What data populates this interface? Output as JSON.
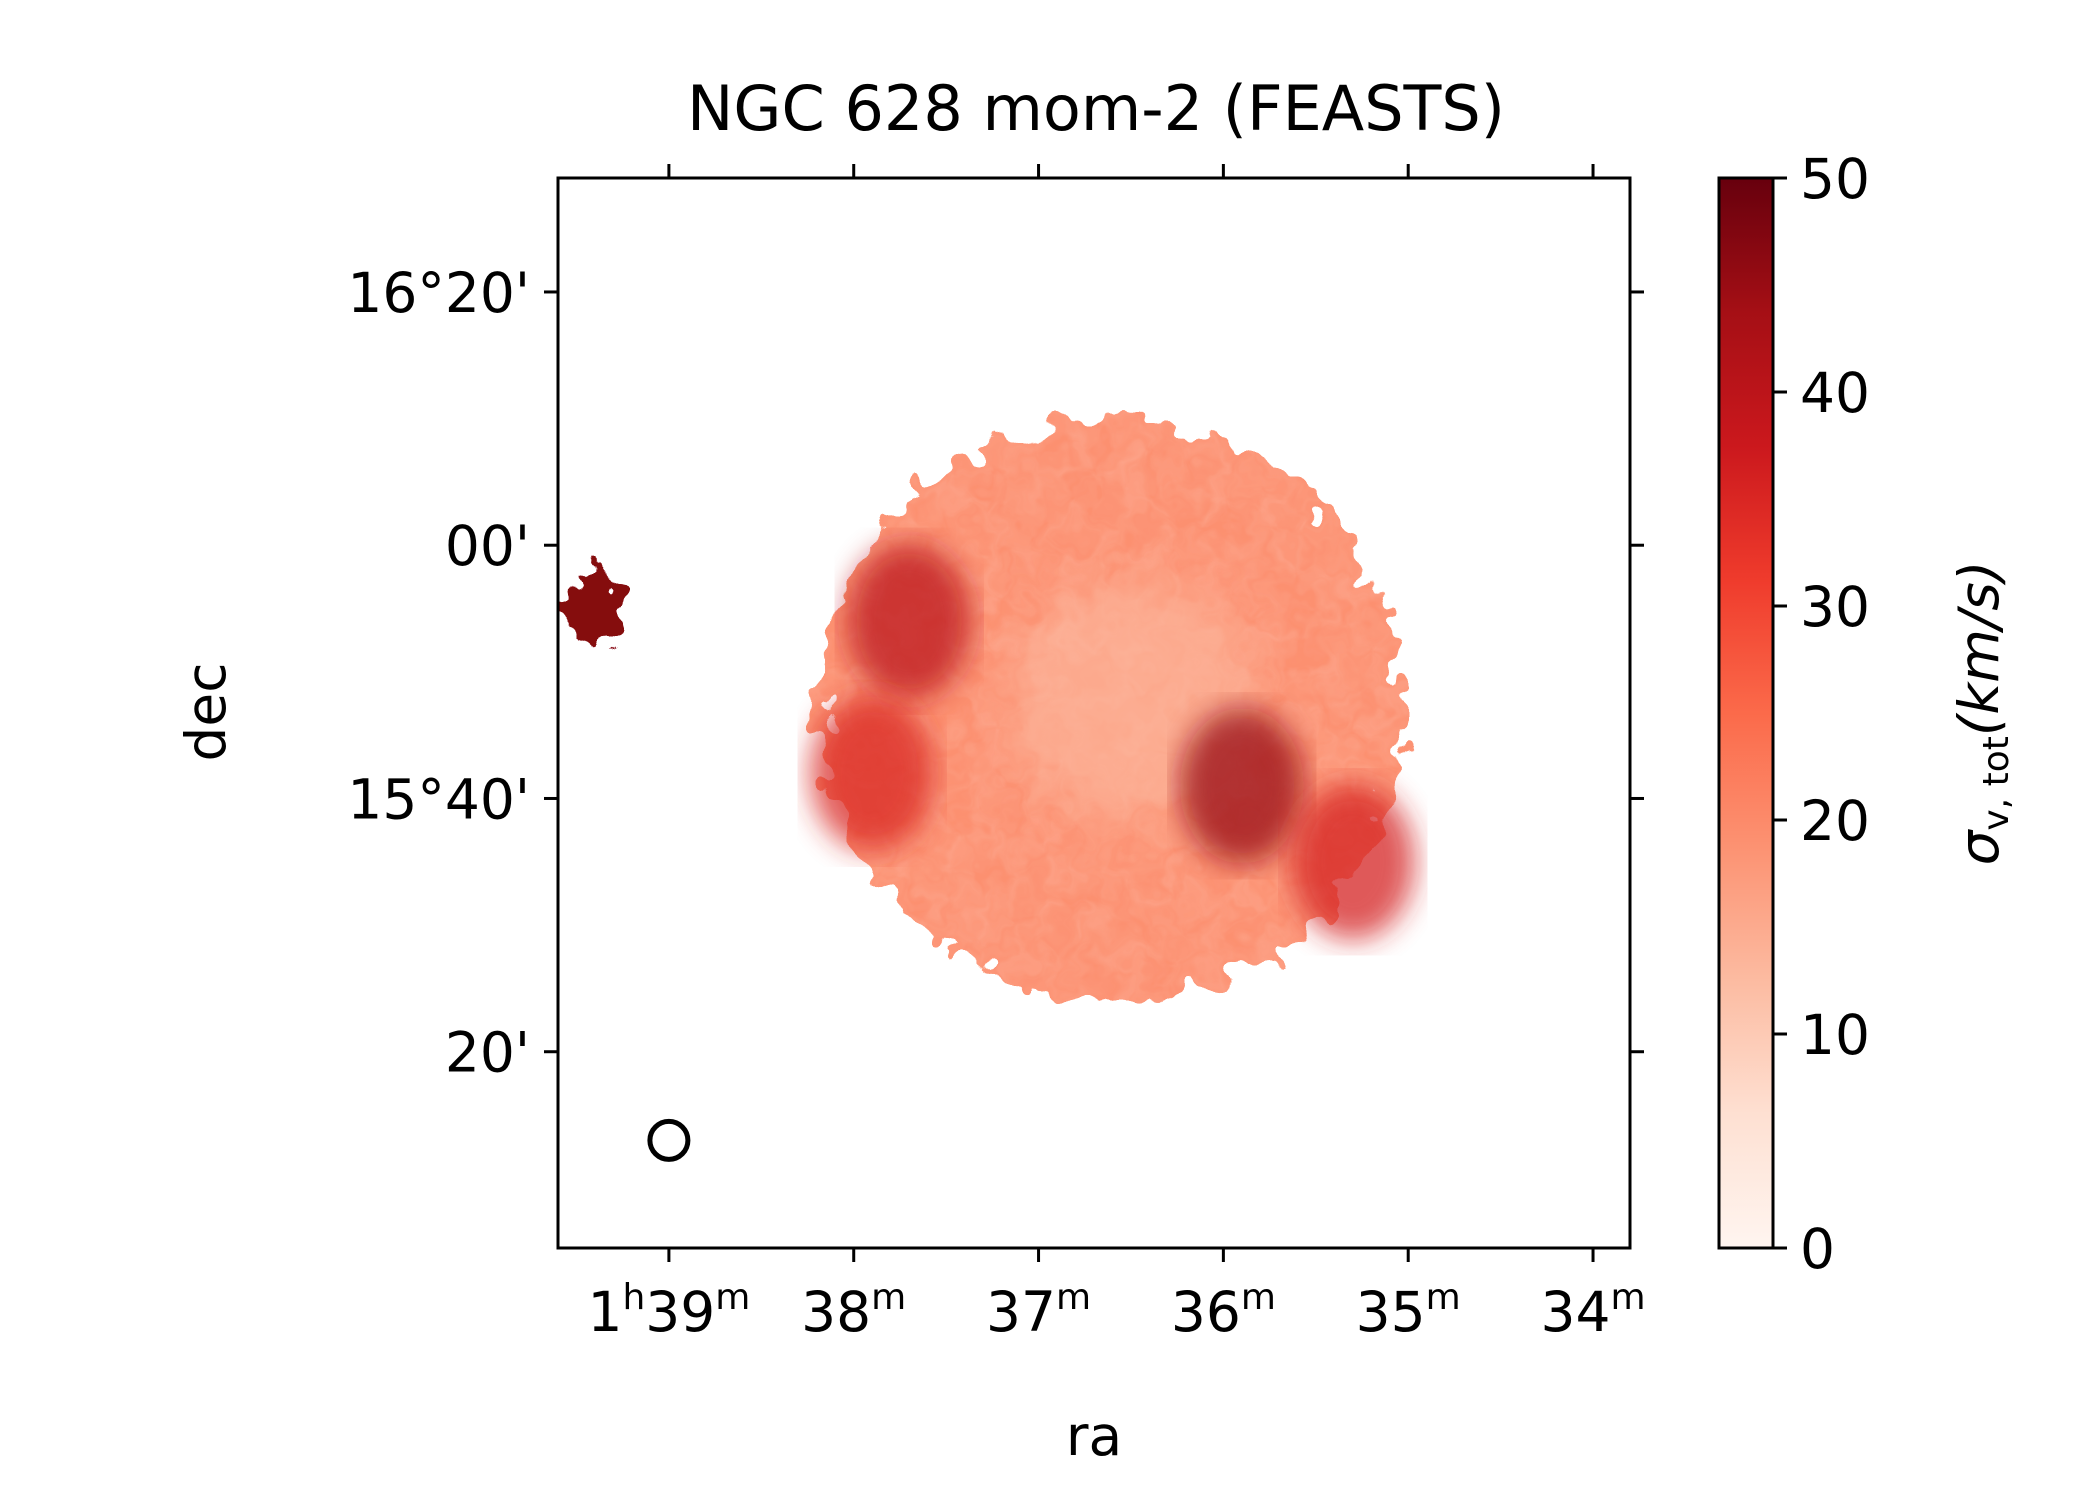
{
  "chart_data": {
    "type": "heatmap",
    "title": "NGC 628 mom-2 (FEASTS)",
    "xlabel": "ra",
    "ylabel": "dec",
    "x_ticks": [
      {
        "value_min": 39,
        "label_main": "1",
        "sup1": "h",
        "label_mid": "39",
        "sup2": "m"
      },
      {
        "value_min": 38,
        "label_main": "38",
        "sup1": "m",
        "label_mid": "",
        "sup2": ""
      },
      {
        "value_min": 37,
        "label_main": "37",
        "sup1": "m",
        "label_mid": "",
        "sup2": ""
      },
      {
        "value_min": 36,
        "label_main": "36",
        "sup1": "m",
        "label_mid": "",
        "sup2": ""
      },
      {
        "value_min": 35,
        "label_main": "35",
        "sup1": "m",
        "label_mid": "",
        "sup2": ""
      },
      {
        "value_min": 34,
        "label_main": "34",
        "sup1": "m",
        "label_mid": "",
        "sup2": ""
      }
    ],
    "x_range_min": [
      39.6,
      33.8
    ],
    "y_ticks": [
      {
        "value_arcmin": 980,
        "label": "16°20'"
      },
      {
        "value_arcmin": 960,
        "label": "00'"
      },
      {
        "value_arcmin": 940,
        "label": "15°40'"
      },
      {
        "value_arcmin": 920,
        "label": "20'"
      }
    ],
    "y_range_arcmin": [
      904.5,
      989
    ],
    "colorbar": {
      "label_main": "σ",
      "label_sub": "v, tot",
      "label_unit": "(km/s)",
      "range": [
        0,
        50
      ],
      "ticks": [
        0,
        10,
        20,
        30,
        40,
        50
      ],
      "colormap": "Reds",
      "colors": [
        "#fff5f0",
        "#fee0d2",
        "#fcbba1",
        "#fc9272",
        "#fb6a4a",
        "#ef3b2c",
        "#cb181d",
        "#a50f15",
        "#67000d"
      ]
    },
    "galaxy": {
      "ra_center_min": 36.6,
      "dec_center_arcmin": 947,
      "radius_arcmin": 23,
      "typical_value": 15
    },
    "high_dispersion_regions": [
      {
        "ra_min": 37.7,
        "dec_arcmin": 954,
        "value": 40
      },
      {
        "ra_min": 37.9,
        "dec_arcmin": 942,
        "value": 35
      },
      {
        "ra_min": 35.9,
        "dec_arcmin": 941,
        "value": 45
      },
      {
        "ra_min": 35.3,
        "dec_arcmin": 935,
        "value": 36
      }
    ],
    "companion": {
      "ra_min": 39.4,
      "dec_arcmin": 955,
      "value": 47
    },
    "beam": {
      "ra_min": 39.0,
      "dec_arcmin": 913,
      "shape": "circle"
    }
  }
}
